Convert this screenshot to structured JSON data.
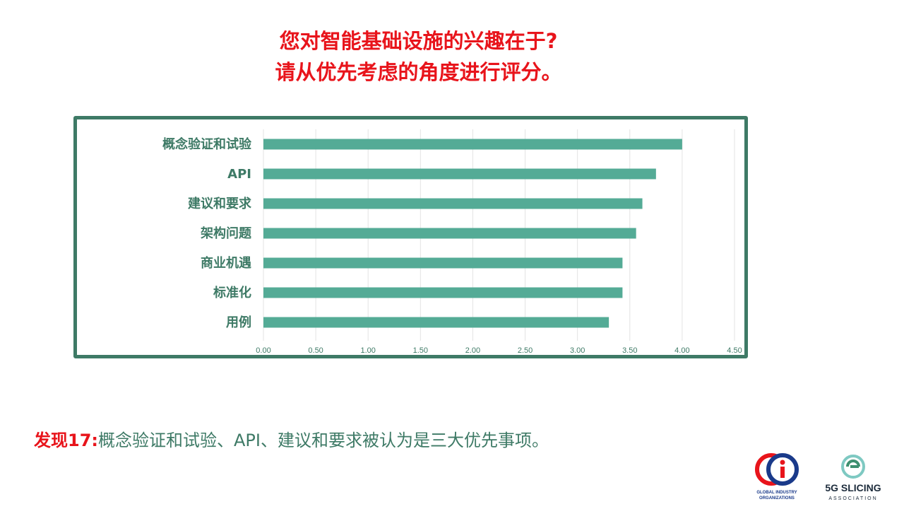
{
  "title": {
    "line1": "您对智能基础设施的兴趣在于?",
    "line2": "请从优先考虑的角度进行评分。"
  },
  "finding": {
    "label": "发现17:",
    "text": "概念验证和试验、API、建议和要求被认为是三大优先事项。"
  },
  "logos": {
    "gio_line1": "GLOBAL INDUSTRY",
    "gio_line2": "ORGANIZATIONS",
    "slicing_name": "5G SLICING",
    "slicing_sub": "ASSOCIATION"
  },
  "colors": {
    "title": "#e8141b",
    "bar": "#54ab96",
    "frame": "#3e7a66",
    "category_text": "#3e7a66",
    "tick_text": "#3e7a66",
    "grid": "#e3e3e3"
  },
  "chart_data": {
    "type": "bar",
    "orientation": "horizontal",
    "categories": [
      "概念验证和试验",
      "API",
      "建议和要求",
      "架构问题",
      "商业机遇",
      "标准化",
      "用例"
    ],
    "values": [
      4.0,
      3.75,
      3.62,
      3.56,
      3.43,
      3.43,
      3.3
    ],
    "xlim": [
      0,
      4.5
    ],
    "xticks": [
      "0.00",
      "0.50",
      "1.00",
      "1.50",
      "2.00",
      "2.50",
      "3.00",
      "3.50",
      "4.00",
      "4.50"
    ],
    "title": "",
    "xlabel": "",
    "ylabel": "",
    "grid": true,
    "legend": "none"
  }
}
